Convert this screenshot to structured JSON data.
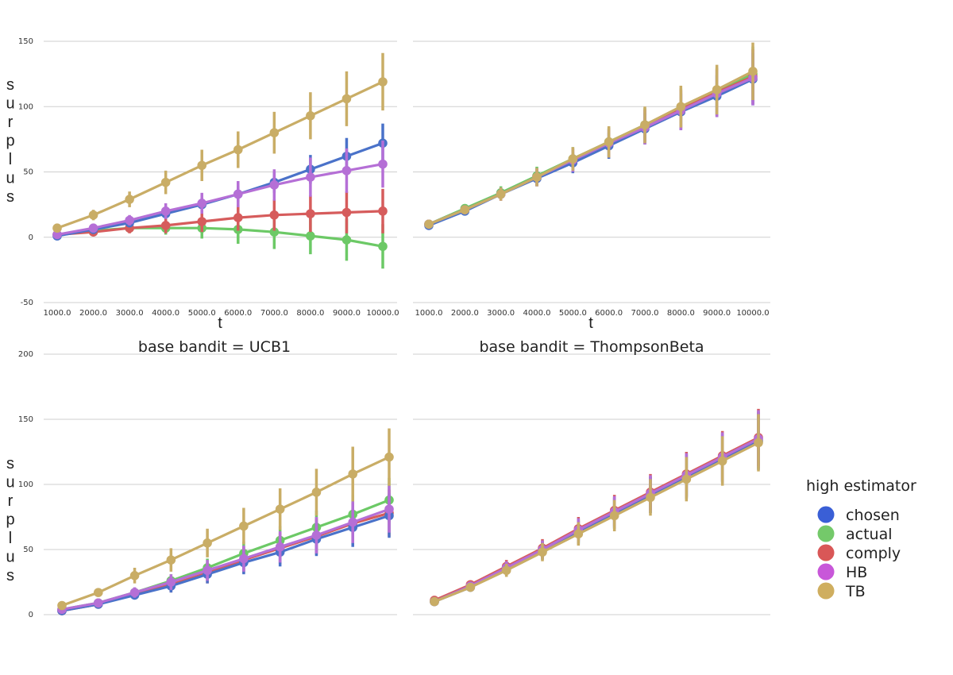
{
  "chart_data": [
    {
      "type": "line",
      "title": "",
      "xlabel": "t",
      "ylabel": "surplus",
      "x": [
        "1000.0",
        "2000.0",
        "3000.0",
        "4000.0",
        "5000.0",
        "6000.0",
        "7000.0",
        "8000.0",
        "9000.0",
        "10000.0"
      ],
      "ylim": [
        -50,
        150
      ],
      "yticks": [
        "150",
        "100",
        "50",
        "0",
        "-50"
      ],
      "grid": true,
      "series": [
        {
          "name": "chosen",
          "values": [
            1,
            6,
            11,
            18,
            25,
            33,
            42,
            52,
            62,
            72
          ],
          "err": [
            1,
            2,
            3,
            4,
            5,
            6,
            8,
            11,
            14,
            15
          ]
        },
        {
          "name": "actual",
          "values": [
            2,
            5,
            7,
            7,
            7,
            6,
            4,
            1,
            -2,
            -7
          ],
          "err": [
            1,
            2,
            3,
            5,
            8,
            11,
            13,
            14,
            16,
            17
          ]
        },
        {
          "name": "comply",
          "values": [
            2,
            4,
            7,
            9,
            12,
            15,
            17,
            18,
            19,
            20
          ],
          "err": [
            1,
            2,
            4,
            6,
            8,
            10,
            12,
            14,
            16,
            17
          ]
        },
        {
          "name": "HB",
          "values": [
            2,
            7,
            13,
            20,
            26,
            33,
            40,
            46,
            51,
            56
          ],
          "err": [
            1,
            2,
            4,
            6,
            8,
            10,
            12,
            15,
            17,
            18
          ]
        },
        {
          "name": "TB",
          "values": [
            7,
            17,
            29,
            42,
            55,
            67,
            80,
            93,
            106,
            119
          ],
          "err": [
            2,
            4,
            6,
            9,
            12,
            14,
            16,
            18,
            21,
            22
          ]
        }
      ]
    },
    {
      "type": "line",
      "title": "",
      "xlabel": "t",
      "ylabel": "",
      "x": [
        "1000.0",
        "2000.0",
        "3000.0",
        "4000.0",
        "5000.0",
        "6000.0",
        "7000.0",
        "8000.0",
        "9000.0",
        "10000.0"
      ],
      "ylim": [
        -50,
        150
      ],
      "grid": true,
      "series": [
        {
          "name": "chosen",
          "values": [
            9,
            20,
            33,
            45,
            57,
            70,
            83,
            96,
            108,
            121
          ],
          "err": [
            2,
            3,
            4,
            6,
            8,
            10,
            12,
            14,
            16,
            20
          ]
        },
        {
          "name": "actual",
          "values": [
            10,
            22,
            34,
            47,
            60,
            73,
            86,
            99,
            112,
            125
          ],
          "err": [
            2,
            3,
            5,
            7,
            9,
            11,
            13,
            15,
            18,
            21
          ]
        },
        {
          "name": "comply",
          "values": [
            10,
            21,
            33,
            46,
            59,
            72,
            85,
            98,
            111,
            123
          ],
          "err": [
            2,
            3,
            5,
            7,
            9,
            11,
            13,
            15,
            18,
            21
          ]
        },
        {
          "name": "HB",
          "values": [
            10,
            21,
            33,
            46,
            59,
            72,
            84,
            97,
            110,
            122
          ],
          "err": [
            2,
            3,
            5,
            7,
            9,
            11,
            13,
            15,
            18,
            21
          ]
        },
        {
          "name": "TB",
          "values": [
            10,
            21,
            33,
            46,
            60,
            73,
            86,
            100,
            113,
            127
          ],
          "err": [
            2,
            3,
            5,
            7,
            9,
            12,
            14,
            16,
            19,
            22
          ]
        }
      ]
    },
    {
      "type": "line",
      "title": "base bandit = UCB1",
      "xlabel": "",
      "ylabel": "surplus",
      "x": [
        "1000.0",
        "2000.0",
        "3000.0",
        "4000.0",
        "5000.0",
        "6000.0",
        "7000.0",
        "8000.0",
        "9000.0",
        "10000.0"
      ],
      "ylim": [
        0,
        200
      ],
      "yticks": [
        "200",
        "150",
        "100",
        "50",
        "0"
      ],
      "grid": true,
      "series": [
        {
          "name": "chosen",
          "values": [
            3,
            8,
            15,
            22,
            31,
            40,
            48,
            58,
            67,
            76
          ],
          "err": [
            1,
            2,
            3,
            5,
            7,
            9,
            11,
            13,
            15,
            17
          ]
        },
        {
          "name": "actual",
          "values": [
            4,
            9,
            17,
            26,
            36,
            47,
            57,
            67,
            77,
            88
          ],
          "err": [
            1,
            2,
            3,
            5,
            7,
            9,
            11,
            13,
            15,
            17
          ]
        },
        {
          "name": "comply",
          "values": [
            3,
            8,
            16,
            23,
            32,
            42,
            51,
            60,
            70,
            78
          ],
          "err": [
            1,
            2,
            4,
            6,
            8,
            10,
            12,
            14,
            16,
            18
          ]
        },
        {
          "name": "HB",
          "values": [
            4,
            9,
            17,
            25,
            34,
            43,
            52,
            61,
            71,
            81
          ],
          "err": [
            1,
            2,
            4,
            6,
            8,
            10,
            12,
            14,
            16,
            18
          ]
        },
        {
          "name": "TB",
          "values": [
            7,
            17,
            30,
            42,
            55,
            68,
            81,
            94,
            108,
            121
          ],
          "err": [
            2,
            3,
            6,
            9,
            11,
            14,
            16,
            18,
            21,
            22
          ]
        }
      ]
    },
    {
      "type": "line",
      "title": "base bandit = ThompsonBeta",
      "xlabel": "",
      "ylabel": "",
      "x": [
        "1000.0",
        "2000.0",
        "3000.0",
        "4000.0",
        "5000.0",
        "6000.0",
        "7000.0",
        "8000.0",
        "9000.0",
        "10000.0"
      ],
      "ylim": [
        0,
        200
      ],
      "grid": true,
      "series": [
        {
          "name": "chosen",
          "values": [
            10,
            21,
            35,
            49,
            63,
            78,
            92,
            106,
            120,
            133
          ],
          "err": [
            2,
            3,
            5,
            7,
            9,
            12,
            14,
            17,
            19,
            22
          ]
        },
        {
          "name": "actual",
          "values": [
            10,
            22,
            36,
            50,
            64,
            78,
            92,
            107,
            121,
            134
          ],
          "err": [
            2,
            3,
            5,
            7,
            9,
            12,
            14,
            17,
            19,
            22
          ]
        },
        {
          "name": "comply",
          "values": [
            11,
            23,
            37,
            51,
            66,
            80,
            94,
            108,
            122,
            136
          ],
          "err": [
            2,
            3,
            5,
            7,
            9,
            12,
            14,
            17,
            19,
            22
          ]
        },
        {
          "name": "HB",
          "values": [
            10,
            22,
            36,
            50,
            65,
            79,
            93,
            107,
            121,
            135
          ],
          "err": [
            2,
            3,
            5,
            7,
            9,
            12,
            14,
            17,
            19,
            22
          ]
        },
        {
          "name": "TB",
          "values": [
            10,
            21,
            34,
            48,
            62,
            76,
            90,
            104,
            118,
            132
          ],
          "err": [
            2,
            3,
            5,
            7,
            9,
            12,
            14,
            17,
            19,
            22
          ]
        }
      ]
    }
  ],
  "legend": {
    "title": "high estimator",
    "entries": [
      {
        "label": "chosen",
        "color": "#3a5fd6"
      },
      {
        "label": "actual",
        "color": "#74c96a"
      },
      {
        "label": "comply",
        "color": "#d95757"
      },
      {
        "label": "HB",
        "color": "#c857d9"
      },
      {
        "label": "TB",
        "color": "#cfae5f"
      }
    ]
  },
  "colors": {
    "chosen": "#4a72c9",
    "actual": "#6cc966",
    "comply": "#d65c5c",
    "HB": "#b56fd6",
    "TB": "#c9ad66",
    "grid": "#cfcfcf"
  }
}
